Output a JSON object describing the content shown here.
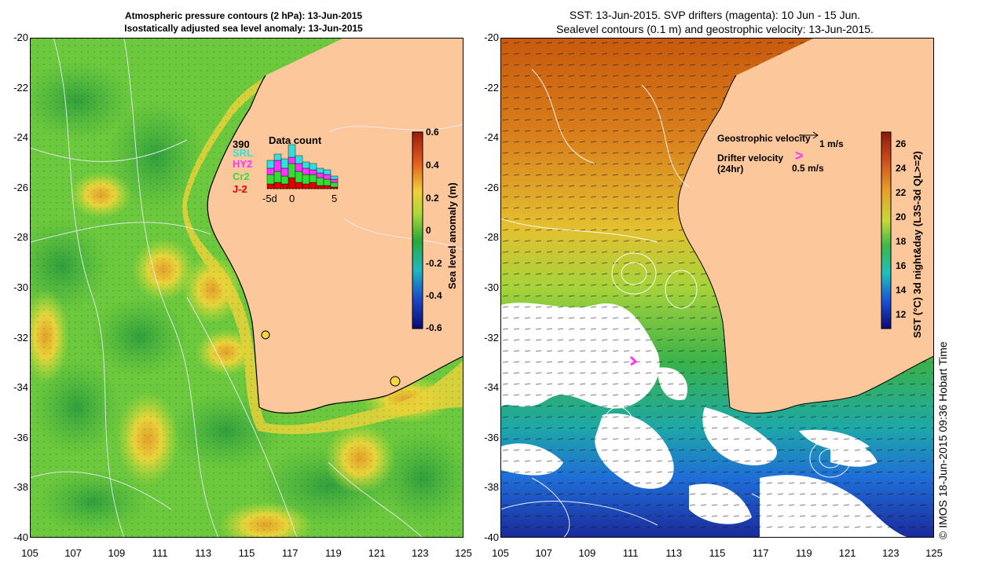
{
  "left_panel": {
    "title_line1": "Atmospheric pressure contours (2 hPa): 13-Jun-2015",
    "title_line2": "Isostatically adjusted sea level anomaly: 13-Jun-2015",
    "colorbar": {
      "label": "Sea level anomaly (m)",
      "ticks": [
        "0.6",
        "0.4",
        "0.2",
        "0",
        "-0.2",
        "-0.4",
        "-0.6"
      ]
    },
    "inset": {
      "title": "Data count",
      "total": "390",
      "series": [
        "SRL",
        "HY2",
        "Cr2",
        "J-2"
      ],
      "series_colors": [
        "#33dddd",
        "#ff33ff",
        "#33dd33",
        "#dd0000"
      ],
      "xlabels": [
        "-5d",
        "0",
        "5"
      ]
    }
  },
  "right_panel": {
    "title_line1": "SST: 13-Jun-2015. SVP drifters (magenta): 10 Jun - 15 Jun.",
    "title_line2": "Sealevel contours (0.1 m) and geostrophic velocity: 13-Jun-2015.",
    "colorbar": {
      "label": "SST (°C) 3d night&day (L3S-3d QL>=2)",
      "ticks": [
        "26",
        "24",
        "22",
        "20",
        "18",
        "16",
        "14",
        "12"
      ]
    },
    "legend": {
      "geostrophic_label": "Geostrophic velocity",
      "geostrophic_scale": "1 m/s",
      "drifter_label": "Drifter velocity",
      "drifter_period": "(24hr)",
      "drifter_symbol": ">",
      "drifter_scale": "0.5 m/s"
    }
  },
  "axes": {
    "lat_ticks": [
      "-20",
      "-22",
      "-24",
      "-26",
      "-28",
      "-30",
      "-32",
      "-34",
      "-36",
      "-38",
      "-40"
    ],
    "lon_ticks": [
      "105",
      "107",
      "109",
      "111",
      "113",
      "115",
      "117",
      "119",
      "121",
      "123",
      "125"
    ]
  },
  "credit": "© IMOS 18-Jun-2015 09:36 Hobart Time"
}
